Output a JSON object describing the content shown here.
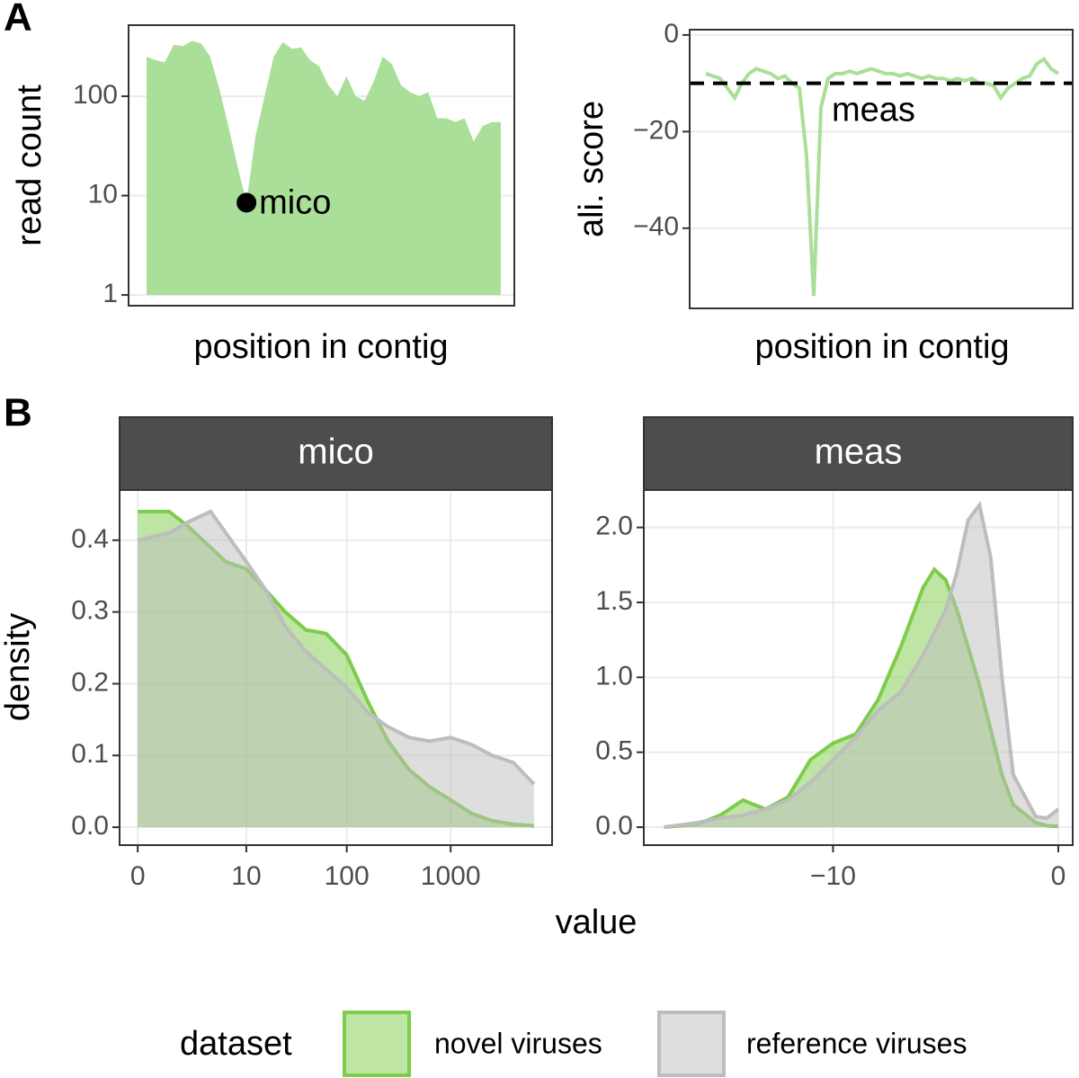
{
  "panel_labels": [
    "A",
    "B"
  ],
  "shared": {
    "x_label": "value",
    "y_label": "density"
  },
  "legend": {
    "title": "dataset"
  },
  "chart_data": [
    {
      "type": "area",
      "x_label": "position in contig",
      "y_label": "read count",
      "yscale": "log",
      "ylim": [
        0.78,
        519
      ],
      "yticks": [
        1,
        10,
        100
      ],
      "grid": true,
      "color": "#a9df98",
      "values": [
        250,
        230,
        220,
        330,
        320,
        360,
        340,
        250,
        120,
        50,
        20,
        8.5,
        40,
        100,
        250,
        350,
        300,
        310,
        230,
        200,
        130,
        100,
        160,
        100,
        90,
        140,
        250,
        210,
        130,
        110,
        100,
        110,
        60,
        60,
        55,
        60,
        35,
        50,
        55,
        55
      ],
      "annotation": {
        "text": "mico",
        "value": 8.5
      }
    },
    {
      "type": "line",
      "x_label": "position in contig",
      "y_label": "ali. score",
      "ylim": [
        -56.6,
        1.1
      ],
      "yticks": [
        0,
        {
          "value": -20,
          "label": "−20"
        },
        {
          "value": -40,
          "label": "−40"
        }
      ],
      "grid": true,
      "color": "#a9df98",
      "values": [
        -8,
        -8.5,
        -9,
        -11,
        -13,
        -10,
        -8,
        -7,
        -7.5,
        -8,
        -9,
        -8.5,
        -10,
        -11,
        -25,
        -54,
        -15,
        -9,
        -8,
        -8,
        -7.5,
        -8,
        -7.5,
        -7,
        -7.5,
        -8,
        -8,
        -8.5,
        -8,
        -8.5,
        -9,
        -8.5,
        -9,
        -9,
        -9.5,
        -9,
        -9.5,
        -9,
        -10,
        -10,
        -10.5,
        -13,
        -11,
        -10,
        -9,
        -8.5,
        -6,
        -5,
        -7,
        -8
      ],
      "hline": {
        "value": -10,
        "text": "meas"
      }
    },
    {
      "type": "density",
      "title": "mico",
      "xscale": "log1p",
      "xlim": [
        -0.33,
        9400
      ],
      "xticks": [
        0,
        10,
        100,
        1000
      ],
      "ylim": [
        -0.025,
        0.47
      ],
      "yticks": [
        {
          "value": 0,
          "label": "0.0"
        },
        0.1,
        0.2,
        0.3,
        0.4
      ],
      "grid": true,
      "x": [
        0,
        1,
        2,
        4,
        6,
        10,
        16,
        25,
        40,
        63,
        100,
        160,
        250,
        400,
        630,
        1000,
        1600,
        2500,
        4000,
        6300
      ],
      "series": [
        {
          "name": "novel viruses",
          "color": "#7dcc4a",
          "values": [
            0.44,
            0.44,
            0.42,
            0.39,
            0.37,
            0.36,
            0.33,
            0.3,
            0.275,
            0.27,
            0.24,
            0.175,
            0.12,
            0.08,
            0.056,
            0.038,
            0.019,
            0.009,
            0.004,
            0.002
          ]
        },
        {
          "name": "reference viruses",
          "color": "#bdbdbd",
          "values": [
            0.4,
            0.41,
            0.425,
            0.44,
            0.41,
            0.37,
            0.33,
            0.28,
            0.245,
            0.22,
            0.195,
            0.16,
            0.14,
            0.125,
            0.12,
            0.125,
            0.115,
            0.1,
            0.09,
            0.06
          ]
        }
      ]
    },
    {
      "type": "density",
      "title": "meas",
      "xlim": [
        -18.4,
        0.64
      ],
      "xticks": [
        {
          "value": -10,
          "label": "−10"
        },
        0
      ],
      "ylim": [
        -0.12,
        2.25
      ],
      "yticks": [
        {
          "value": 0,
          "label": "0.0"
        },
        0.5,
        {
          "value": 1,
          "label": "1.0"
        },
        1.5,
        {
          "value": 2,
          "label": "2.0"
        }
      ],
      "grid": true,
      "x": [
        -17.5,
        -16,
        -15,
        -14,
        -13,
        -12,
        -11,
        -10,
        -9,
        -8,
        -7,
        -6,
        -5.5,
        -5,
        -4.5,
        -4,
        -3.5,
        -3,
        -2.5,
        -2,
        -1,
        -0.5,
        0
      ],
      "series": [
        {
          "name": "novel viruses",
          "color": "#7dcc4a",
          "values": [
            0,
            0.02,
            0.08,
            0.18,
            0.12,
            0.2,
            0.45,
            0.56,
            0.62,
            0.85,
            1.2,
            1.6,
            1.72,
            1.65,
            1.45,
            1.2,
            0.95,
            0.65,
            0.35,
            0.15,
            0.03,
            0.01,
            0.005
          ]
        },
        {
          "name": "reference viruses",
          "color": "#bdbdbd",
          "values": [
            0,
            0.03,
            0.06,
            0.08,
            0.12,
            0.18,
            0.3,
            0.45,
            0.6,
            0.78,
            0.9,
            1.15,
            1.3,
            1.45,
            1.7,
            2.05,
            2.15,
            1.8,
            1,
            0.35,
            0.07,
            0.06,
            0.12
          ]
        }
      ]
    }
  ]
}
